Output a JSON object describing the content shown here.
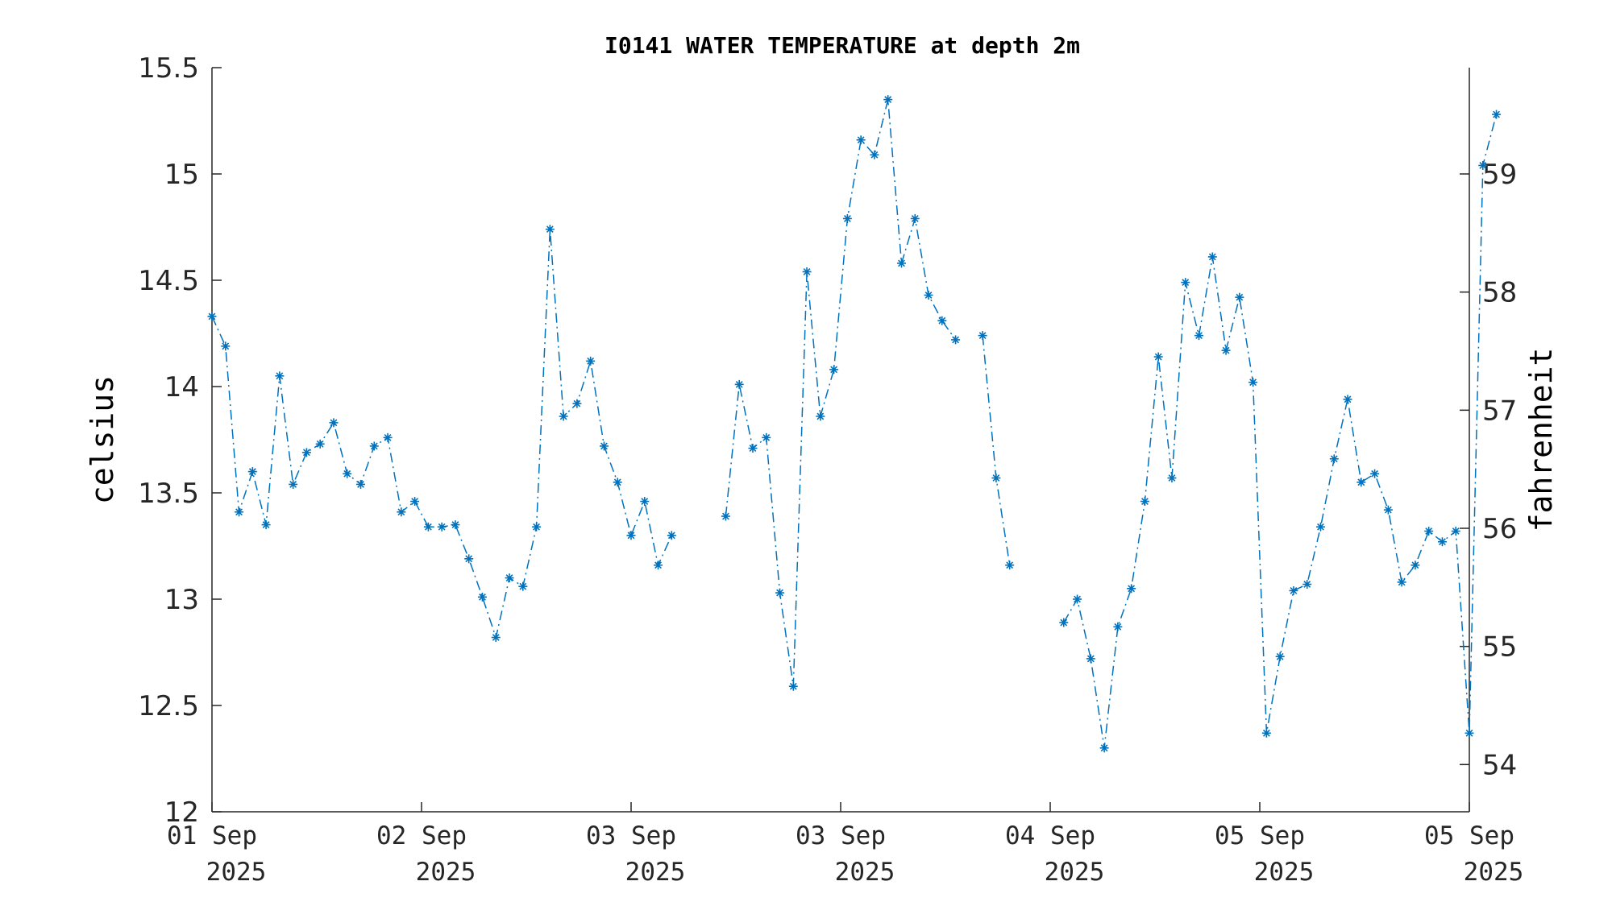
{
  "chart_data": {
    "type": "line",
    "title": "I0141 WATER TEMPERATURE at depth 2m",
    "ylabel": "celsius",
    "y2label": "fahrenheit",
    "ylim": [
      12,
      15.5
    ],
    "y2lim": [
      53.6,
      59.9
    ],
    "yticks": [
      "15.5",
      "15",
      "14.5",
      "14",
      "13.5",
      "13",
      "12.5",
      "12"
    ],
    "y2ticks": [
      "59",
      "58",
      "57",
      "56",
      "55",
      "54"
    ],
    "xticks": [
      {
        "day": "01 Sep",
        "year": "2025"
      },
      {
        "day": "02 Sep",
        "year": "2025"
      },
      {
        "day": "03 Sep",
        "year": "2025"
      },
      {
        "day": "03 Sep",
        "year": "2025"
      },
      {
        "day": "04 Sep",
        "year": "2025"
      },
      {
        "day": "05 Sep",
        "year": "2025"
      },
      {
        "day": "05 Sep",
        "year": "2025"
      }
    ],
    "grid": false,
    "marker": "asterisk",
    "line_color": "#0072bd",
    "series": [
      {
        "values": [
          [
            14.33,
            14.19,
            13.41,
            13.6,
            13.35,
            14.05,
            13.54,
            13.69,
            13.73,
            13.83,
            13.59,
            13.54,
            13.72,
            13.76,
            13.41,
            13.46,
            13.34,
            13.34,
            13.35,
            13.19,
            13.01,
            12.82,
            13.1,
            13.06,
            13.34,
            14.74,
            13.86,
            13.92,
            14.12,
            13.72,
            13.55,
            13.3,
            13.46,
            13.16,
            13.3
          ],
          [
            13.39,
            14.01,
            13.71,
            13.76,
            13.03,
            12.59,
            14.54,
            13.86,
            14.08,
            14.79,
            15.16,
            15.09,
            15.35,
            14.58,
            14.79,
            14.43,
            14.31,
            14.22
          ],
          [
            14.24,
            13.57,
            13.16
          ],
          [
            12.89,
            13.0,
            12.72,
            12.3,
            12.87,
            13.05,
            13.46,
            14.14,
            13.57,
            14.49,
            14.24,
            14.61,
            14.17,
            14.42,
            14.02,
            12.37,
            12.73,
            13.04,
            13.07,
            13.34,
            13.66,
            13.94,
            13.55,
            13.59,
            13.42,
            13.08,
            13.16,
            13.32,
            13.27,
            13.32,
            12.37,
            15.04,
            15.28
          ]
        ]
      }
    ]
  }
}
